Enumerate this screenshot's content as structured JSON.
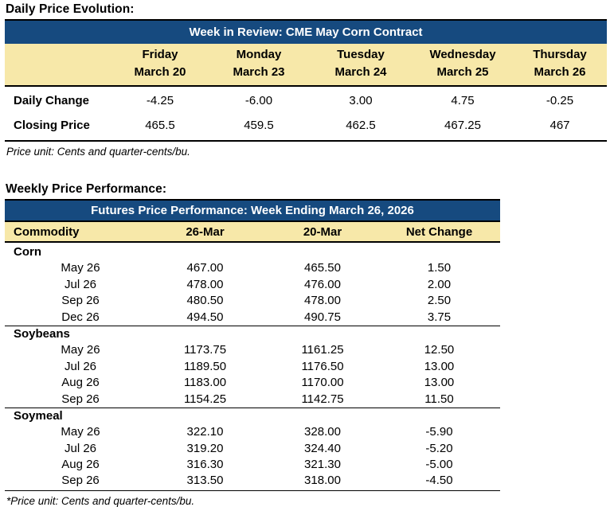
{
  "colors": {
    "header_navy": "#164A7F",
    "header_cream": "#F7E8A9",
    "border_black": "#000000",
    "text_black": "#000000",
    "title_text_white": "#FFFFFF"
  },
  "daily_section": {
    "heading": "Daily Price Evolution:",
    "table": {
      "title": "Week in Review: CME May Corn Contract",
      "columns": [
        {
          "day": "Friday",
          "date": "March 20"
        },
        {
          "day": "Monday",
          "date": "March 23"
        },
        {
          "day": "Tuesday",
          "date": "March 24"
        },
        {
          "day": "Wednesday",
          "date": "March 25"
        },
        {
          "day": "Thursday",
          "date": "March 26"
        }
      ],
      "rows": [
        {
          "label": "Daily Change",
          "values": [
            "-4.25",
            "-6.00",
            "3.00",
            "4.75",
            "-0.25"
          ]
        },
        {
          "label": "Closing Price",
          "values": [
            "465.5",
            "459.5",
            "462.5",
            "467.25",
            "467"
          ]
        }
      ],
      "footnote": "Price unit: Cents and quarter-cents/bu."
    }
  },
  "weekly_section": {
    "heading": "Weekly Price Performance:",
    "table": {
      "title": "Futures Price Performance: Week Ending March 26, 2026",
      "headers": [
        "Commodity",
        "26-Mar",
        "20-Mar",
        "Net Change"
      ],
      "groups": [
        {
          "name": "Corn",
          "rows": [
            [
              "May 26",
              "467.00",
              "465.50",
              "1.50"
            ],
            [
              "Jul 26",
              "478.00",
              "476.00",
              "2.00"
            ],
            [
              "Sep 26",
              "480.50",
              "478.00",
              "2.50"
            ],
            [
              "Dec 26",
              "494.50",
              "490.75",
              "3.75"
            ]
          ]
        },
        {
          "name": "Soybeans",
          "rows": [
            [
              "May 26",
              "1173.75",
              "1161.25",
              "12.50"
            ],
            [
              "Jul 26",
              "1189.50",
              "1176.50",
              "13.00"
            ],
            [
              "Aug 26",
              "1183.00",
              "1170.00",
              "13.00"
            ],
            [
              "Sep 26",
              "1154.25",
              "1142.75",
              "11.50"
            ]
          ]
        },
        {
          "name": "Soymeal",
          "rows": [
            [
              "May 26",
              "322.10",
              "328.00",
              "-5.90"
            ],
            [
              "Jul 26",
              "319.20",
              "324.40",
              "-5.20"
            ],
            [
              "Aug 26",
              "316.30",
              "321.30",
              "-5.00"
            ],
            [
              "Sep 26",
              "313.50",
              "318.00",
              "-4.50"
            ]
          ]
        }
      ],
      "footnote": "*Price unit: Cents and quarter-cents/bu."
    }
  }
}
